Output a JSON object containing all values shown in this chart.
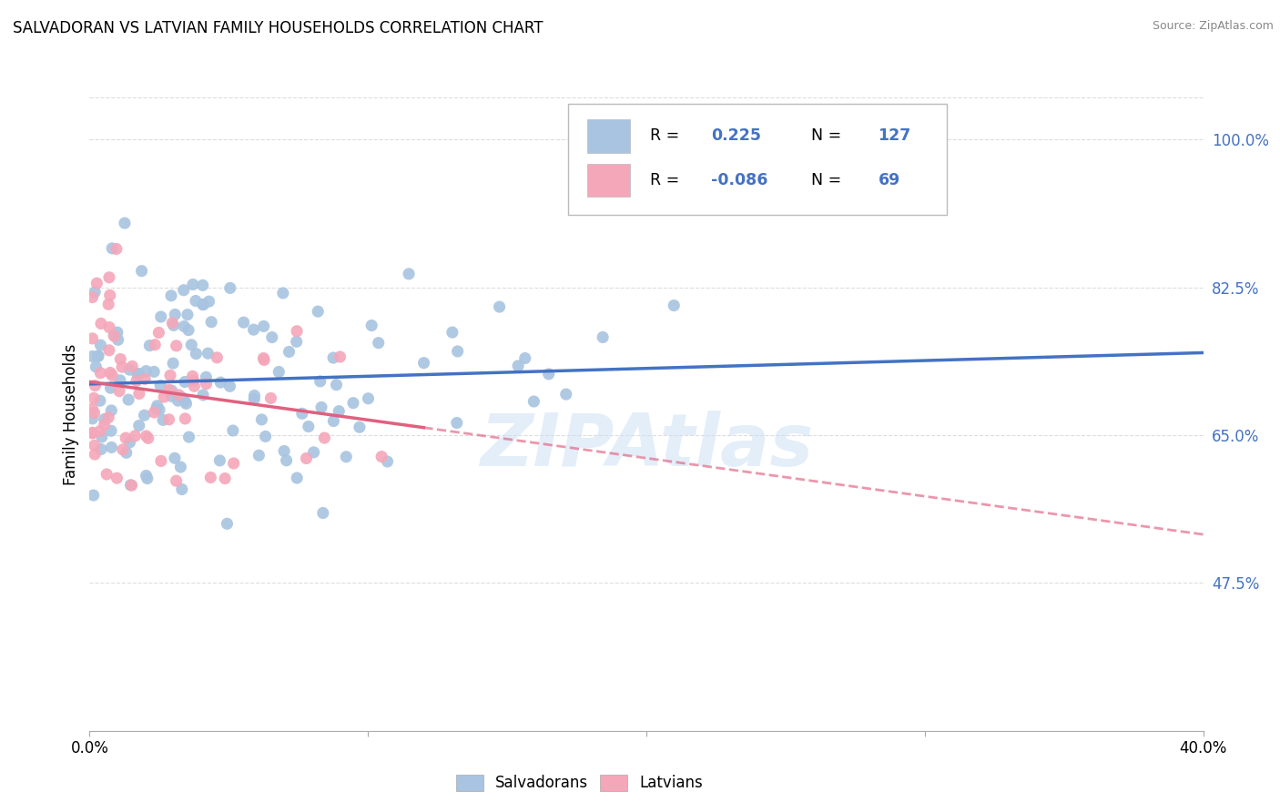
{
  "title": "SALVADORAN VS LATVIAN FAMILY HOUSEHOLDS CORRELATION CHART",
  "source": "Source: ZipAtlas.com",
  "ylabel": "Family Households",
  "r_salvadoran": 0.225,
  "n_salvadoran": 127,
  "r_latvian": -0.086,
  "n_latvian": 69,
  "salvadoran_color": "#a8c4e0",
  "latvian_color": "#f4a7b9",
  "trend_salvadoran_color": "#4472c4",
  "trend_latvian_color": "#e06080",
  "legend_text_color": "#4472c4",
  "ytick_color": "#4472c4",
  "xlim": [
    0.0,
    0.4
  ],
  "ylim": [
    0.3,
    1.05
  ],
  "background_color": "#ffffff",
  "ytick_vals": [
    0.475,
    0.65,
    0.825,
    1.0
  ],
  "ytick_labels": [
    "47.5%",
    "65.0%",
    "82.5%",
    "100.0%"
  ],
  "xtick_vals": [
    0.0,
    0.1,
    0.2,
    0.3,
    0.4
  ],
  "xtick_labels": [
    "0.0%",
    "",
    "",
    "",
    "40.0%"
  ],
  "grid_color": "#dddddd",
  "latvian_trend_split_x": 0.12,
  "salv_trend_intercept": 0.703,
  "salv_trend_slope": 0.22,
  "latv_trend_intercept": 0.715,
  "latv_trend_slope": -0.18,
  "watermark_text": "ZIPAtlas",
  "watermark_color": "#c8dff5",
  "watermark_alpha": 0.5,
  "watermark_fontsize": 58
}
